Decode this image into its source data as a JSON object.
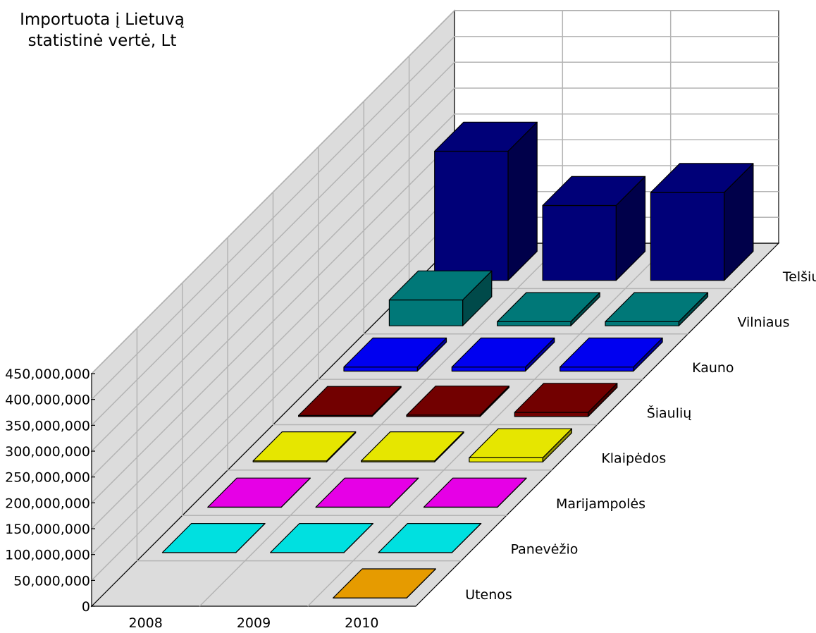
{
  "chart_data": {
    "type": "bar",
    "title": "",
    "xlabel": "",
    "ylabel": "Importuota į Lietuvą statistinė vertė, Lt",
    "ylabel_lines": [
      "Importuota į Lietuvą",
      "statistinė vertė, Lt"
    ],
    "ylim": [
      0,
      450000000
    ],
    "y_ticks": [
      "0",
      "50,000,000",
      "100,000,000",
      "150,000,000",
      "200,000,000",
      "250,000,000",
      "300,000,000",
      "350,000,000",
      "400,000,000",
      "450,000,000"
    ],
    "categories": [
      "2008",
      "2009",
      "2010"
    ],
    "grid": true,
    "series": [
      {
        "name": "Utenos",
        "color": "#E69B00",
        "values": [
          0,
          0,
          300000
        ]
      },
      {
        "name": "Panevėžio",
        "color": "#00E0E0",
        "values": [
          300000,
          300000,
          300000
        ]
      },
      {
        "name": "Marijampolės",
        "color": "#E600E6",
        "values": [
          300000,
          300000,
          300000
        ]
      },
      {
        "name": "Klaipėdos",
        "color": "#E6E600",
        "values": [
          2000000,
          2000000,
          8000000
        ]
      },
      {
        "name": "Šiaulių",
        "color": "#720000",
        "values": [
          2000000,
          2800000,
          8000000
        ]
      },
      {
        "name": "Kauno",
        "color": "#0000F0",
        "values": [
          8000000,
          8000000,
          8000000
        ]
      },
      {
        "name": "Vilniaus",
        "color": "#007878",
        "values": [
          50000000,
          8000000,
          8000000
        ]
      },
      {
        "name": "Telšių",
        "color": "#000078",
        "values": [
          250000000,
          145000000,
          170000000
        ]
      }
    ]
  }
}
